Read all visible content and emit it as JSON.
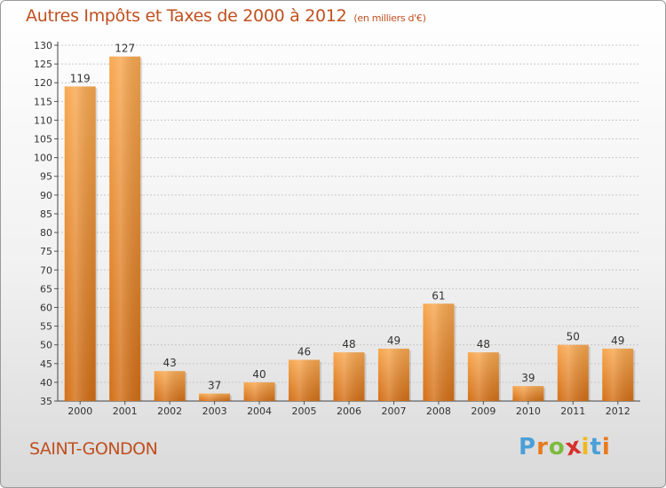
{
  "title": "Autres Impôts et Taxes de 2000 à 2012",
  "title_unit": "(en milliers d'€)",
  "commune": "SAINT-GONDON",
  "logo": {
    "text": "Proxiti",
    "letters": [
      "P",
      "r",
      "o",
      "x",
      "i",
      "t",
      "i"
    ],
    "colors": [
      "#4aa0d8",
      "#e87a1e",
      "#7dbb3c",
      "#d8302c",
      "#f0b81d",
      "#4aa0d8",
      "#e87a1e"
    ]
  },
  "colors": {
    "bar_top": "#f8a850",
    "bar_bottom": "#d36f17",
    "title": "#c0501f",
    "grid": "#c8c8c8"
  },
  "chart_data": {
    "type": "bar",
    "title": "Autres Impôts et Taxes de 2000 à 2012",
    "xlabel": "",
    "ylabel": "",
    "ylim": [
      35,
      130
    ],
    "yticks": [
      35,
      40,
      45,
      50,
      55,
      60,
      65,
      70,
      75,
      80,
      85,
      90,
      95,
      100,
      105,
      110,
      115,
      120,
      125,
      130
    ],
    "grid": true,
    "categories": [
      "2000",
      "2001",
      "2002",
      "2003",
      "2004",
      "2005",
      "2006",
      "2007",
      "2008",
      "2009",
      "2010",
      "2011",
      "2012"
    ],
    "values": [
      119,
      127,
      43,
      37,
      40,
      46,
      48,
      49,
      61,
      48,
      39,
      50,
      49
    ]
  }
}
